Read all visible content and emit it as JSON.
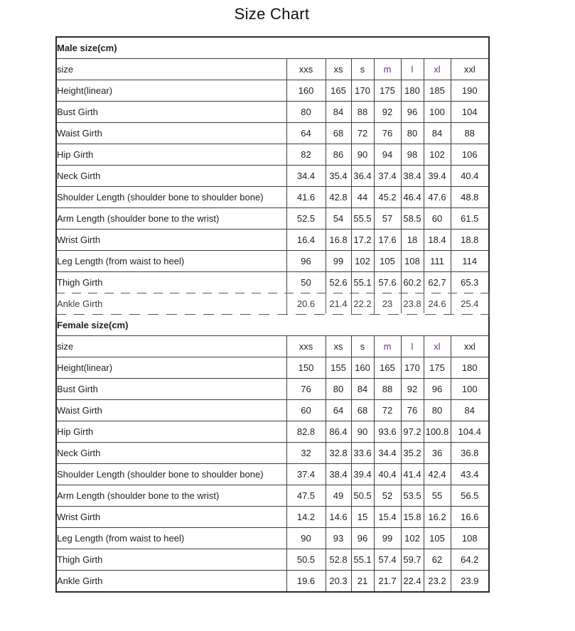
{
  "page_title": "Size Chart",
  "styles": {
    "accent_purple": "#682d86",
    "purple_columns": [
      "m",
      "l",
      "xl"
    ],
    "inner_border_color": "#3d3d3d",
    "outer_border_color": "#2b2b2b",
    "text_color": "#1f1f1f"
  },
  "chart_data": [
    {
      "type": "table",
      "title": "Male size(cm)",
      "size_label_header": "size",
      "columns": [
        "xxs",
        "xs",
        "s",
        "m",
        "l",
        "xl",
        "xxl"
      ],
      "rows": [
        {
          "label": "Height(linear)",
          "values": [
            "160",
            "165",
            "170",
            "175",
            "180",
            "185",
            "190"
          ]
        },
        {
          "label": "Bust Girth",
          "values": [
            "80",
            "84",
            "88",
            "92",
            "96",
            "100",
            "104"
          ]
        },
        {
          "label": "Waist Girth",
          "values": [
            "64",
            "68",
            "72",
            "76",
            "80",
            "84",
            "88"
          ]
        },
        {
          "label": "Hip Girth",
          "values": [
            "82",
            "86",
            "90",
            "94",
            "98",
            "102",
            "106"
          ]
        },
        {
          "label": "Neck Girth",
          "values": [
            "34.4",
            "35.4",
            "36.4",
            "37.4",
            "38.4",
            "39.4",
            "40.4"
          ]
        },
        {
          "label": "Shoulder Length (shoulder bone to shoulder bone)",
          "values": [
            "41.6",
            "42.8",
            "44",
            "45.2",
            "46.4",
            "47.6",
            "48.8"
          ]
        },
        {
          "label": "Arm Length (shoulder bone to the wrist)",
          "values": [
            "52.5",
            "54",
            "55.5",
            "57",
            "58.5",
            "60",
            "61.5"
          ]
        },
        {
          "label": "Wrist Girth",
          "values": [
            "16.4",
            "16.8",
            "17.2",
            "17.6",
            "18",
            "18.4",
            "18.8"
          ]
        },
        {
          "label": "Leg Length (from waist to heel)",
          "values": [
            "96",
            "99",
            "102",
            "105",
            "108",
            "111",
            "114"
          ]
        },
        {
          "label": "Thigh Girth",
          "values": [
            "50",
            "52.6",
            "55.1",
            "57.6",
            "60.2",
            "62.7",
            "65.3"
          ]
        },
        {
          "label": "Ankle Girth",
          "values": [
            "20.6",
            "21.4",
            "22.2",
            "23",
            "23.8",
            "24.6",
            "25.4"
          ]
        }
      ]
    },
    {
      "type": "table",
      "title": "Female size(cm)",
      "size_label_header": "size",
      "columns": [
        "xxs",
        "xs",
        "s",
        "m",
        "l",
        "xl",
        "xxl"
      ],
      "rows": [
        {
          "label": "Height(linear)",
          "values": [
            "150",
            "155",
            "160",
            "165",
            "170",
            "175",
            "180"
          ]
        },
        {
          "label": "Bust Girth",
          "values": [
            "76",
            "80",
            "84",
            "88",
            "92",
            "96",
            "100"
          ]
        },
        {
          "label": "Waist Girth",
          "values": [
            "60",
            "64",
            "68",
            "72",
            "76",
            "80",
            "84"
          ]
        },
        {
          "label": "Hip Girth",
          "values": [
            "82.8",
            "86.4",
            "90",
            "93.6",
            "97.2",
            "100.8",
            "104.4"
          ]
        },
        {
          "label": "Neck Girth",
          "values": [
            "32",
            "32.8",
            "33.6",
            "34.4",
            "35.2",
            "36",
            "36.8"
          ]
        },
        {
          "label": "Shoulder Length (shoulder bone to shoulder bone)",
          "values": [
            "37.4",
            "38.4",
            "39.4",
            "40.4",
            "41.4",
            "42.4",
            "43.4"
          ]
        },
        {
          "label": "Arm Length (shoulder bone to the wrist)",
          "values": [
            "47.5",
            "49",
            "50.5",
            "52",
            "53.5",
            "55",
            "56.5"
          ]
        },
        {
          "label": "Wrist Girth",
          "values": [
            "14.2",
            "14.6",
            "15",
            "15.4",
            "15.8",
            "16.2",
            "16.6"
          ]
        },
        {
          "label": "Leg Length (from waist to heel)",
          "values": [
            "90",
            "93",
            "96",
            "99",
            "102",
            "105",
            "108"
          ]
        },
        {
          "label": "Thigh Girth",
          "values": [
            "50.5",
            "52.8",
            "55.1",
            "57.4",
            "59.7",
            "62",
            "64.2"
          ]
        },
        {
          "label": "Ankle Girth",
          "values": [
            "19.6",
            "20.3",
            "21",
            "21.7",
            "22.4",
            "23.2",
            "23.9"
          ]
        }
      ]
    }
  ]
}
